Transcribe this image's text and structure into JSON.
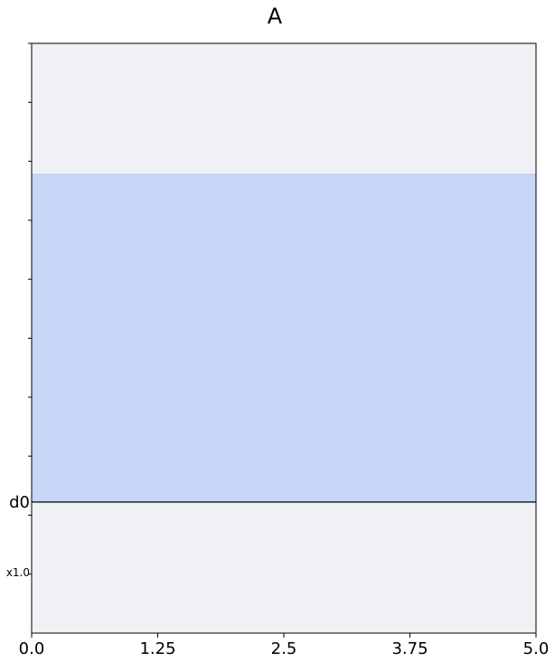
{
  "chart_data": {
    "type": "bar",
    "title": "A",
    "xlabel": "",
    "ylabel": "",
    "xlim": [
      0.0,
      5.0
    ],
    "xticks": [
      0.0,
      1.25,
      2.5,
      3.75,
      5.0
    ],
    "xtick_labels": [
      "0.0",
      "1.25",
      "2.5",
      "3.75",
      "5.0"
    ],
    "ylim": [
      -1.0,
      3.5
    ],
    "ytick_count": 10,
    "categories": [
      "d0"
    ],
    "category_positions": [
      0
    ],
    "scale_label": "x1.0",
    "bars": [
      {
        "category": "d0",
        "x_start": 0.0,
        "x_end": 5.0,
        "base": 0,
        "value": 2.5
      }
    ],
    "grid": false,
    "legend": "none",
    "colors": {
      "plot_background": "#f0f1f4",
      "bar_fill": "#c7d5f7",
      "bar_edge": "#b4c7f0",
      "baseline": "#000000",
      "axis": "#000000"
    }
  }
}
